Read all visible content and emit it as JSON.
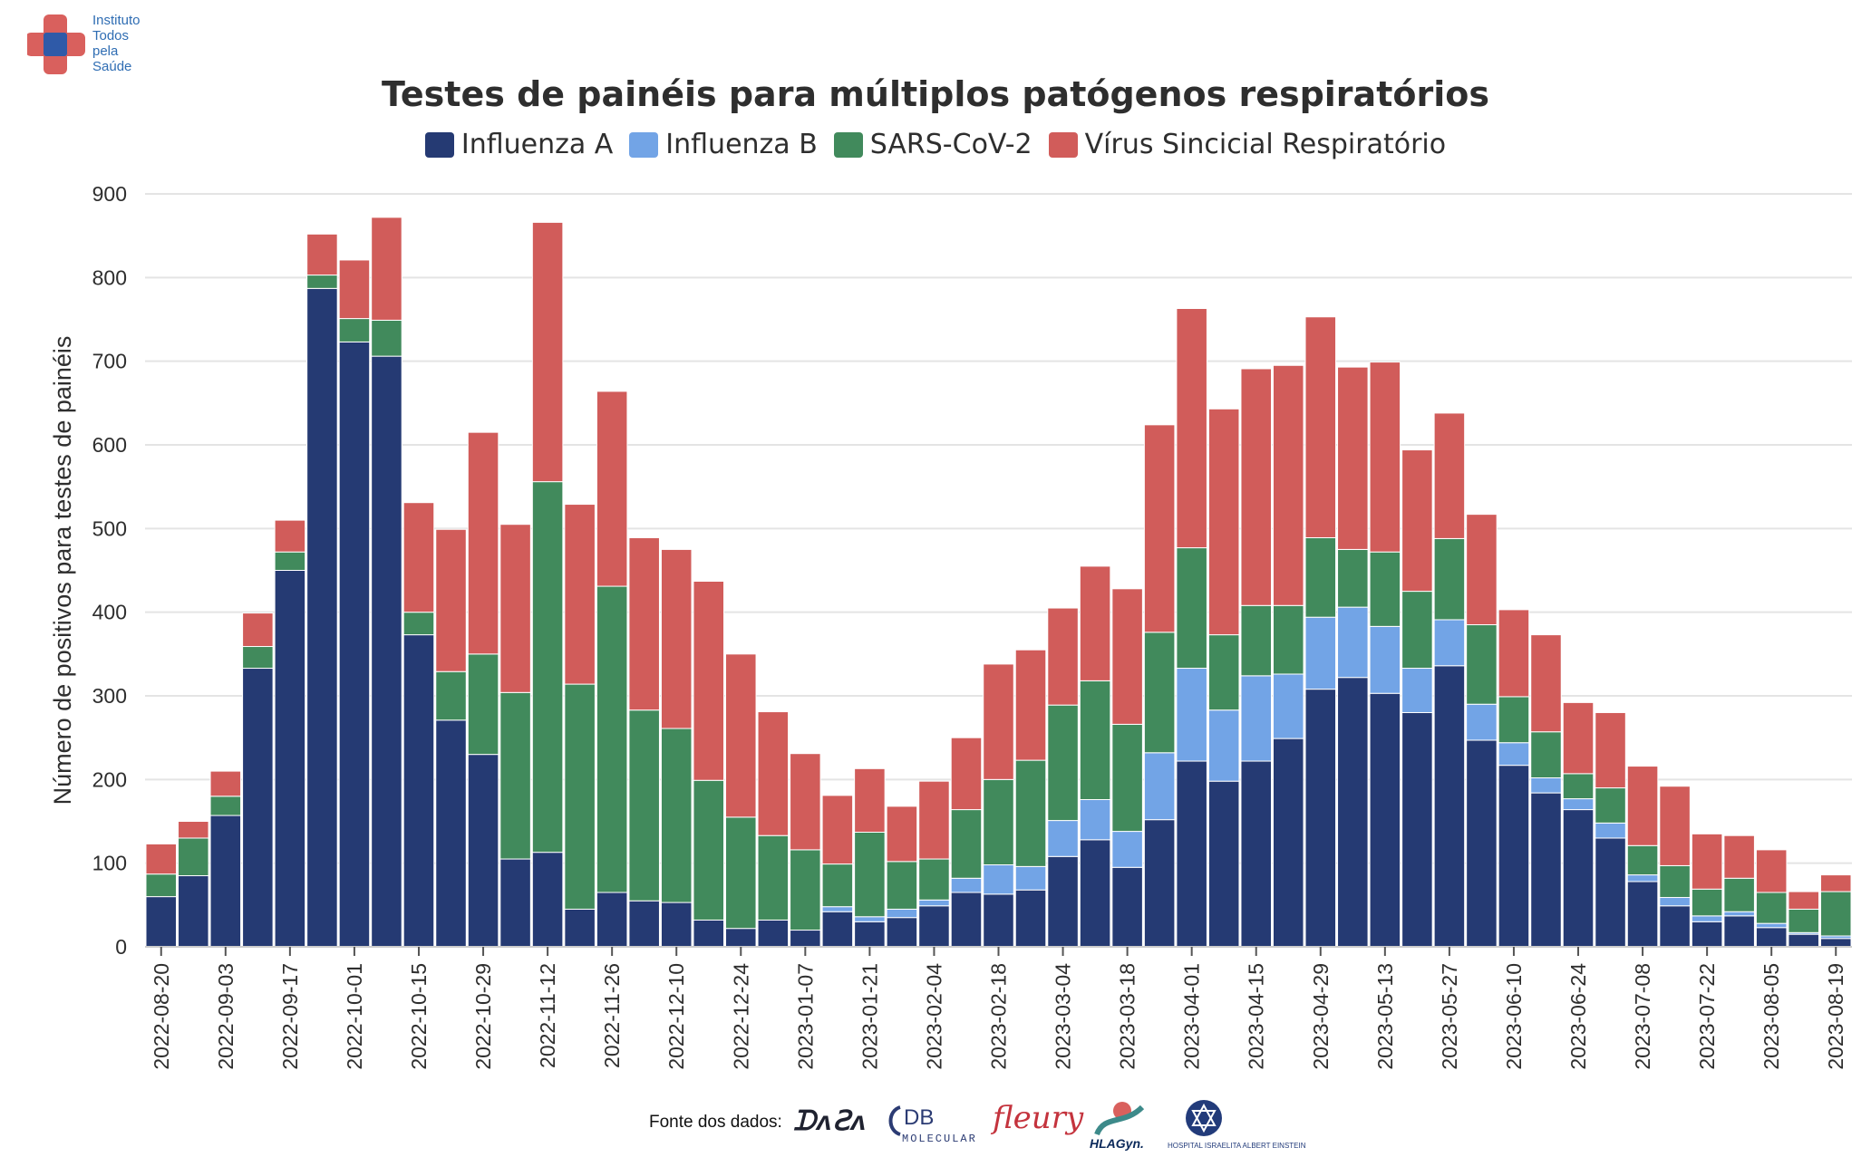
{
  "logo": {
    "lines": [
      "Instituto",
      "Todos",
      "pela",
      "Saúde"
    ]
  },
  "colors": {
    "influenza_a": "#253a73",
    "influenza_b": "#72a4e6",
    "sars_cov_2": "#418a5c",
    "vsr": "#d15c5a",
    "grid": "#e4e4e4",
    "text": "#2e2e2e"
  },
  "footer": {
    "label": "Fonte dos dados:",
    "sources": {
      "dasa": "DASA",
      "db_main": "DB",
      "db_sub": "MOLECULAR",
      "fleury": "fleury",
      "hla": "HLAGyn.",
      "einstein": "HOSPITAL ISRAELITA ALBERT EINSTEIN"
    }
  },
  "chart_data": {
    "type": "bar",
    "stacked": true,
    "title": "Testes de painéis para múltiplos patógenos respiratórios",
    "ylabel": "Número de positivos para testes de painéis",
    "xlabel": "",
    "ylim": [
      0,
      900
    ],
    "yticks": [
      0,
      100,
      200,
      300,
      400,
      500,
      600,
      700,
      800,
      900
    ],
    "grid": true,
    "legend_position": "top-center",
    "categories": [
      "2022-08-20",
      "2022-08-27",
      "2022-09-03",
      "2022-09-10",
      "2022-09-17",
      "2022-09-24",
      "2022-10-01",
      "2022-10-08",
      "2022-10-15",
      "2022-10-22",
      "2022-10-29",
      "2022-11-05",
      "2022-11-12",
      "2022-11-19",
      "2022-11-26",
      "2022-12-03",
      "2022-12-10",
      "2022-12-17",
      "2022-12-24",
      "2022-12-31",
      "2023-01-07",
      "2023-01-14",
      "2023-01-21",
      "2023-01-28",
      "2023-02-04",
      "2023-02-11",
      "2023-02-18",
      "2023-02-25",
      "2023-03-04",
      "2023-03-11",
      "2023-03-18",
      "2023-03-25",
      "2023-04-01",
      "2023-04-08",
      "2023-04-15",
      "2023-04-22",
      "2023-04-29",
      "2023-05-06",
      "2023-05-13",
      "2023-05-20",
      "2023-05-27",
      "2023-06-03",
      "2023-06-10",
      "2023-06-17",
      "2023-06-24",
      "2023-07-01",
      "2023-07-08",
      "2023-07-15",
      "2023-07-22",
      "2023-07-29",
      "2023-08-05",
      "2023-08-12",
      "2023-08-19"
    ],
    "xtick_labels": [
      "2022-08-20",
      "2022-09-03",
      "2022-09-17",
      "2022-10-01",
      "2022-10-15",
      "2022-10-29",
      "2022-11-12",
      "2022-11-26",
      "2022-12-10",
      "2022-12-24",
      "2023-01-07",
      "2023-01-21",
      "2023-02-04",
      "2023-02-18",
      "2023-03-04",
      "2023-03-18",
      "2023-04-01",
      "2023-04-15",
      "2023-04-29",
      "2023-05-13",
      "2023-05-27",
      "2023-06-10",
      "2023-06-24",
      "2023-07-08",
      "2023-07-22",
      "2023-08-05",
      "2023-08-19"
    ],
    "series": [
      {
        "name": "Influenza A",
        "key": "influenza_a",
        "values": [
          60,
          85,
          157,
          333,
          450,
          787,
          723,
          706,
          373,
          271,
          230,
          105,
          113,
          45,
          65,
          55,
          53,
          32,
          22,
          32,
          20,
          42,
          30,
          35,
          49,
          65,
          63,
          68,
          108,
          128,
          95,
          152,
          222,
          198,
          222,
          249,
          308,
          322,
          303,
          280,
          336,
          247,
          217,
          184,
          164,
          130,
          78,
          49,
          30,
          37,
          23,
          15,
          10
        ]
      },
      {
        "name": "Influenza B",
        "key": "influenza_b",
        "values": [
          0,
          0,
          0,
          0,
          0,
          0,
          0,
          0,
          0,
          0,
          0,
          0,
          0,
          0,
          0,
          0,
          0,
          0,
          0,
          0,
          0,
          6,
          6,
          10,
          7,
          17,
          35,
          28,
          43,
          48,
          43,
          80,
          111,
          85,
          102,
          77,
          86,
          84,
          80,
          53,
          55,
          43,
          27,
          18,
          13,
          18,
          8,
          10,
          7,
          5,
          5,
          2,
          3
        ]
      },
      {
        "name": "SARS-CoV-2",
        "key": "sars_cov_2",
        "values": [
          27,
          45,
          23,
          26,
          22,
          16,
          28,
          43,
          27,
          58,
          120,
          199,
          443,
          269,
          366,
          228,
          208,
          167,
          133,
          101,
          96,
          51,
          101,
          57,
          49,
          82,
          102,
          127,
          138,
          142,
          128,
          144,
          144,
          90,
          84,
          82,
          95,
          69,
          89,
          92,
          97,
          95,
          55,
          55,
          30,
          42,
          35,
          38,
          32,
          40,
          37,
          28,
          53
        ]
      },
      {
        "name": "Vírus Sincicial Respiratório",
        "key": "vsr",
        "values": [
          36,
          20,
          30,
          40,
          38,
          49,
          70,
          123,
          131,
          170,
          265,
          201,
          310,
          215,
          233,
          206,
          214,
          238,
          195,
          148,
          115,
          82,
          76,
          66,
          93,
          86,
          138,
          132,
          116,
          137,
          162,
          248,
          286,
          270,
          283,
          287,
          264,
          218,
          227,
          169,
          150,
          132,
          104,
          116,
          85,
          90,
          95,
          95,
          66,
          51,
          51,
          21,
          20
        ]
      }
    ]
  }
}
